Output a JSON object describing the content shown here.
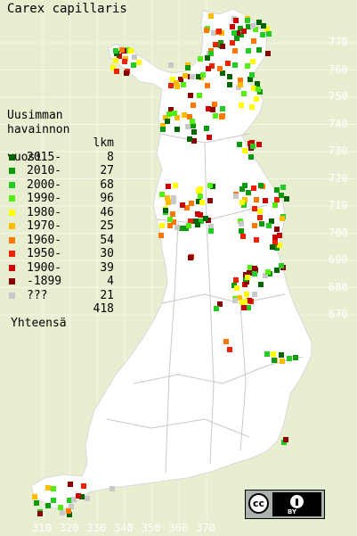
{
  "title": "Carex capillaris",
  "legend": {
    "heading_line1": "Uusimman",
    "heading_line2": "havainnon",
    "heading_line3_left": "vuosi",
    "heading_line3_right": "lkm",
    "rows": [
      {
        "label": "2015-",
        "count": "8",
        "color": "#006400"
      },
      {
        "label": "2010-",
        "count": "27",
        "color": "#0a9a0a"
      },
      {
        "label": "2000-",
        "count": "68",
        "color": "#22cc22"
      },
      {
        "label": "1990-",
        "count": "96",
        "color": "#55ee11"
      },
      {
        "label": "1980-",
        "count": "46",
        "color": "#ffff00"
      },
      {
        "label": "1970-",
        "count": "25",
        "color": "#ffbb00"
      },
      {
        "label": "1960-",
        "count": "54",
        "color": "#ff7700"
      },
      {
        "label": "1950-",
        "count": "30",
        "color": "#ee2200"
      },
      {
        "label": "1900-",
        "count": "39",
        "color": "#cc0000"
      },
      {
        "label": "-1899",
        "count": "4",
        "color": "#880000"
      },
      {
        "label": "???",
        "count": "21",
        "color": "#c8c8c8"
      }
    ],
    "total_label": "Yhteensä",
    "total_count": "418"
  },
  "axis": {
    "x_ticks": [
      "310",
      "320",
      "330",
      "340",
      "350",
      "360",
      "370"
    ],
    "y_ticks": [
      "770",
      "760",
      "750",
      "740",
      "730",
      "720",
      "710",
      "700",
      "690",
      "680",
      "670"
    ]
  },
  "license": {
    "cc": "cc",
    "by": "BY"
  }
}
